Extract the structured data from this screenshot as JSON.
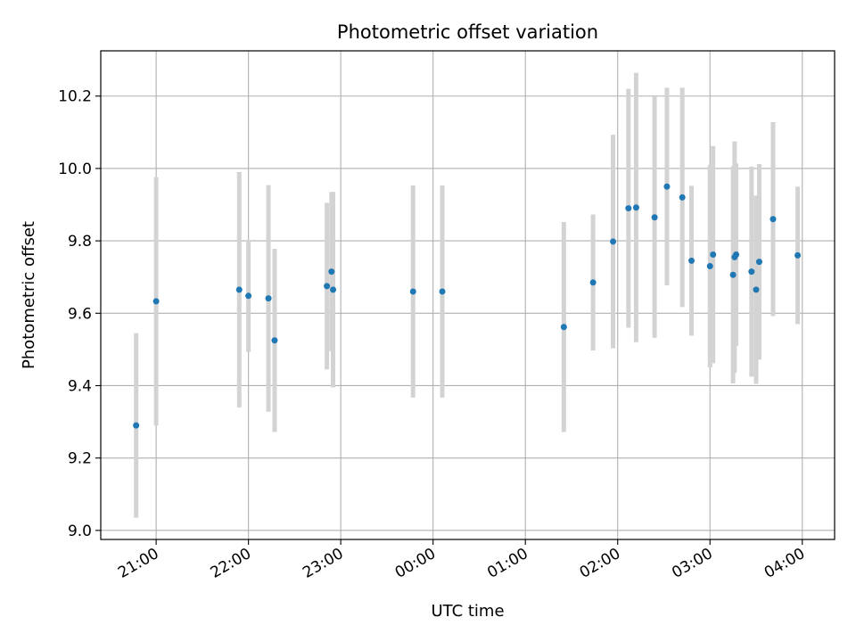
{
  "chart_data": {
    "type": "scatter",
    "title": "Photometric offset variation",
    "xlabel": "UTC time",
    "ylabel": "Photometric offset",
    "grid": true,
    "x_tick_labels": [
      "21:00",
      "22:00",
      "23:00",
      "00:00",
      "01:00",
      "02:00",
      "03:00",
      "04:00"
    ],
    "y_tick_labels": [
      "9.0",
      "9.2",
      "9.4",
      "9.6",
      "9.8",
      "10.0",
      "10.2"
    ],
    "xlim_hours": [
      20.4,
      28.35
    ],
    "ylim": [
      8.975,
      10.325
    ],
    "colors": {
      "points": "#1f77b4",
      "errorbars": "#d3d3d3",
      "grid": "#b0b0b0",
      "axes": "#000000"
    },
    "series": [
      {
        "points": [
          {
            "x": "20:47",
            "y": 9.29,
            "err": 0.255
          },
          {
            "x": "21:00",
            "y": 9.633,
            "err": 0.343
          },
          {
            "x": "21:54",
            "y": 9.665,
            "err": 0.325
          },
          {
            "x": "22:00",
            "y": 9.648,
            "err": 0.155
          },
          {
            "x": "22:13",
            "y": 9.641,
            "err": 0.313
          },
          {
            "x": "22:17",
            "y": 9.525,
            "err": 0.253
          },
          {
            "x": "22:51",
            "y": 9.675,
            "err": 0.23
          },
          {
            "x": "22:54",
            "y": 9.715,
            "err": 0.22
          },
          {
            "x": "22:55",
            "y": 9.665,
            "err": 0.27
          },
          {
            "x": "23:47",
            "y": 9.66,
            "err": 0.293
          },
          {
            "x": "00:06",
            "y": 9.66,
            "err": 0.293
          },
          {
            "x": "01:25",
            "y": 9.562,
            "err": 0.29
          },
          {
            "x": "01:44",
            "y": 9.685,
            "err": 0.188
          },
          {
            "x": "01:57",
            "y": 9.798,
            "err": 0.295
          },
          {
            "x": "02:07",
            "y": 9.89,
            "err": 0.33
          },
          {
            "x": "02:12",
            "y": 9.892,
            "err": 0.372
          },
          {
            "x": "02:24",
            "y": 9.865,
            "err": 0.333
          },
          {
            "x": "02:32",
            "y": 9.95,
            "err": 0.273
          },
          {
            "x": "02:42",
            "y": 9.92,
            "err": 0.303
          },
          {
            "x": "02:48",
            "y": 9.745,
            "err": 0.207
          },
          {
            "x": "03:00",
            "y": 9.73,
            "err": 0.28
          },
          {
            "x": "03:02",
            "y": 9.762,
            "err": 0.3
          },
          {
            "x": "03:15",
            "y": 9.706,
            "err": 0.3
          },
          {
            "x": "03:16",
            "y": 9.755,
            "err": 0.32
          },
          {
            "x": "03:17",
            "y": 9.762,
            "err": 0.252
          },
          {
            "x": "03:27",
            "y": 9.715,
            "err": 0.29
          },
          {
            "x": "03:30",
            "y": 9.665,
            "err": 0.26
          },
          {
            "x": "03:32",
            "y": 9.742,
            "err": 0.27
          },
          {
            "x": "03:41",
            "y": 9.86,
            "err": 0.268
          },
          {
            "x": "03:57",
            "y": 9.76,
            "err": 0.19
          }
        ]
      }
    ]
  }
}
